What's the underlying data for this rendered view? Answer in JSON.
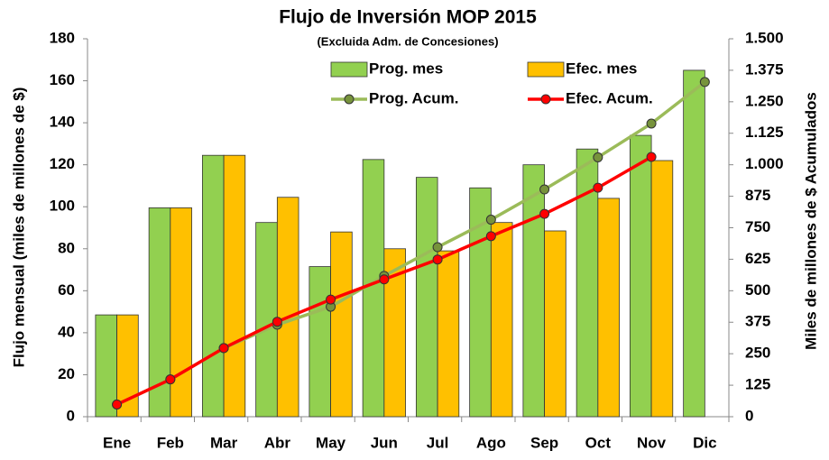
{
  "chart_data": {
    "type": "bar",
    "title": "Flujo de Inversión MOP 2015",
    "subtitle": "(Excluida Adm. de Concesiones)",
    "y_label": "Flujo mensual (miles de millones de $)",
    "y2_label": "Miles de millones de $  Acumulados",
    "categories": [
      "Ene",
      "Feb",
      "Mar",
      "Abr",
      "May",
      "Jun",
      "Jul",
      "Ago",
      "Sep",
      "Oct",
      "Nov",
      "Dic"
    ],
    "series": [
      {
        "name": "Prog. mes",
        "type": "bar",
        "color": "#92d050",
        "values": [
          48.5,
          99.5,
          124.5,
          92.5,
          71.5,
          122.5,
          114,
          109,
          120,
          127.5,
          134,
          165
        ]
      },
      {
        "name": "Efec. mes",
        "type": "bar",
        "color": "#ffc000",
        "values": [
          48.5,
          99.5,
          124.5,
          104.5,
          88,
          80,
          79,
          92.5,
          88.5,
          104,
          122,
          null
        ]
      },
      {
        "name": "Prog. Acum.",
        "type": "line",
        "axis": "y2",
        "color": "#9bbb59",
        "marker_color": "#77933c",
        "values": [
          48.5,
          148,
          272.5,
          365,
          436.5,
          559,
          673,
          782,
          902,
          1029.5,
          1163.5,
          1328.5
        ]
      },
      {
        "name": "Efec. Acum.",
        "type": "line",
        "axis": "y2",
        "color": "#ff0000",
        "marker_color": "#ff0000",
        "values": [
          48.5,
          148,
          272.5,
          377,
          465,
          545,
          624,
          716.5,
          805,
          909,
          1031,
          null
        ]
      }
    ],
    "ylim": [
      0,
      180
    ],
    "yticks": [
      0,
      20,
      40,
      60,
      80,
      100,
      120,
      140,
      160,
      180
    ],
    "y2lim": [
      0,
      1500
    ],
    "y2ticks": [
      0,
      125,
      250,
      375,
      500,
      625,
      750,
      875,
      {
        "value": 1000,
        "label": "1.000"
      },
      {
        "value": 1125,
        "label": "1.125"
      },
      {
        "value": 1250,
        "label": "1.250"
      },
      {
        "value": 1375,
        "label": "1.375"
      },
      {
        "value": 1500,
        "label": "1.500"
      }
    ],
    "grid": false
  }
}
